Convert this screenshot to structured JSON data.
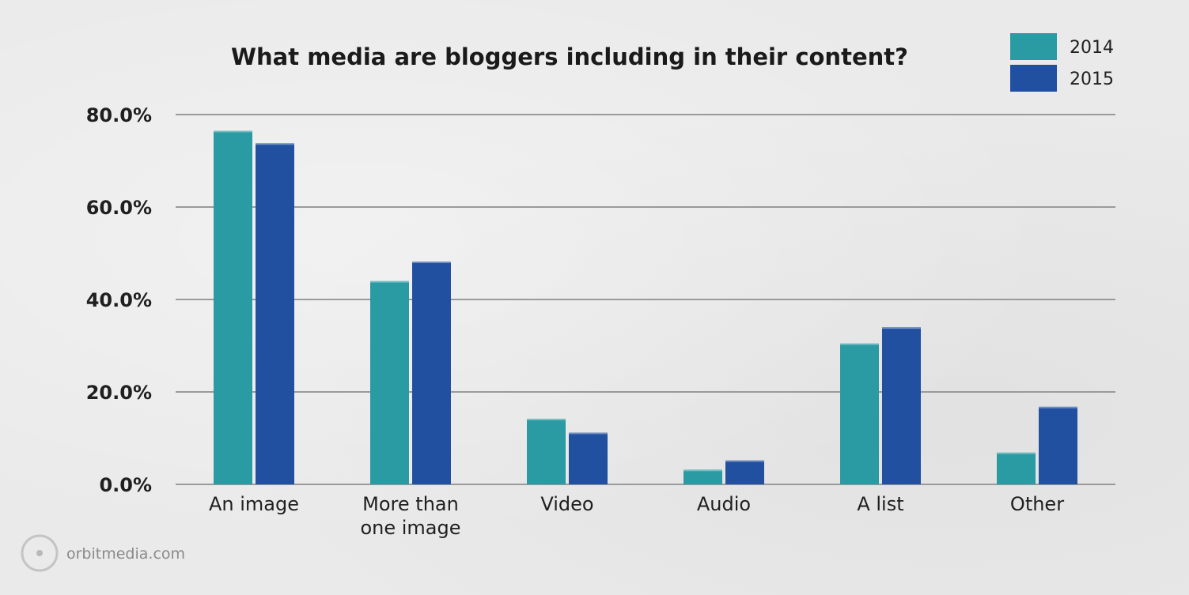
{
  "chart_data": {
    "type": "bar",
    "title": "What media are bloggers including in their content?",
    "categories": [
      [
        "An image"
      ],
      [
        "More than",
        "one image"
      ],
      [
        "Video"
      ],
      [
        "Audio"
      ],
      [
        "A list"
      ],
      [
        "Other"
      ]
    ],
    "series": [
      {
        "name": "2014",
        "color": "#2a9aa3",
        "values": [
          76.5,
          44.0,
          14.2,
          3.2,
          30.5,
          6.9
        ]
      },
      {
        "name": "2015",
        "color": "#2250a0",
        "values": [
          73.8,
          48.2,
          11.2,
          5.2,
          34.0,
          16.8
        ]
      }
    ],
    "y_ticks": [
      "0.0%",
      "20.0%",
      "40.0%",
      "60.0%",
      "80.0%"
    ],
    "ylim": [
      0,
      80
    ],
    "grid": true,
    "legend_position": "top-right"
  },
  "source": {
    "text": "orbitmedia.com",
    "icon": "orbit-logo-icon"
  }
}
